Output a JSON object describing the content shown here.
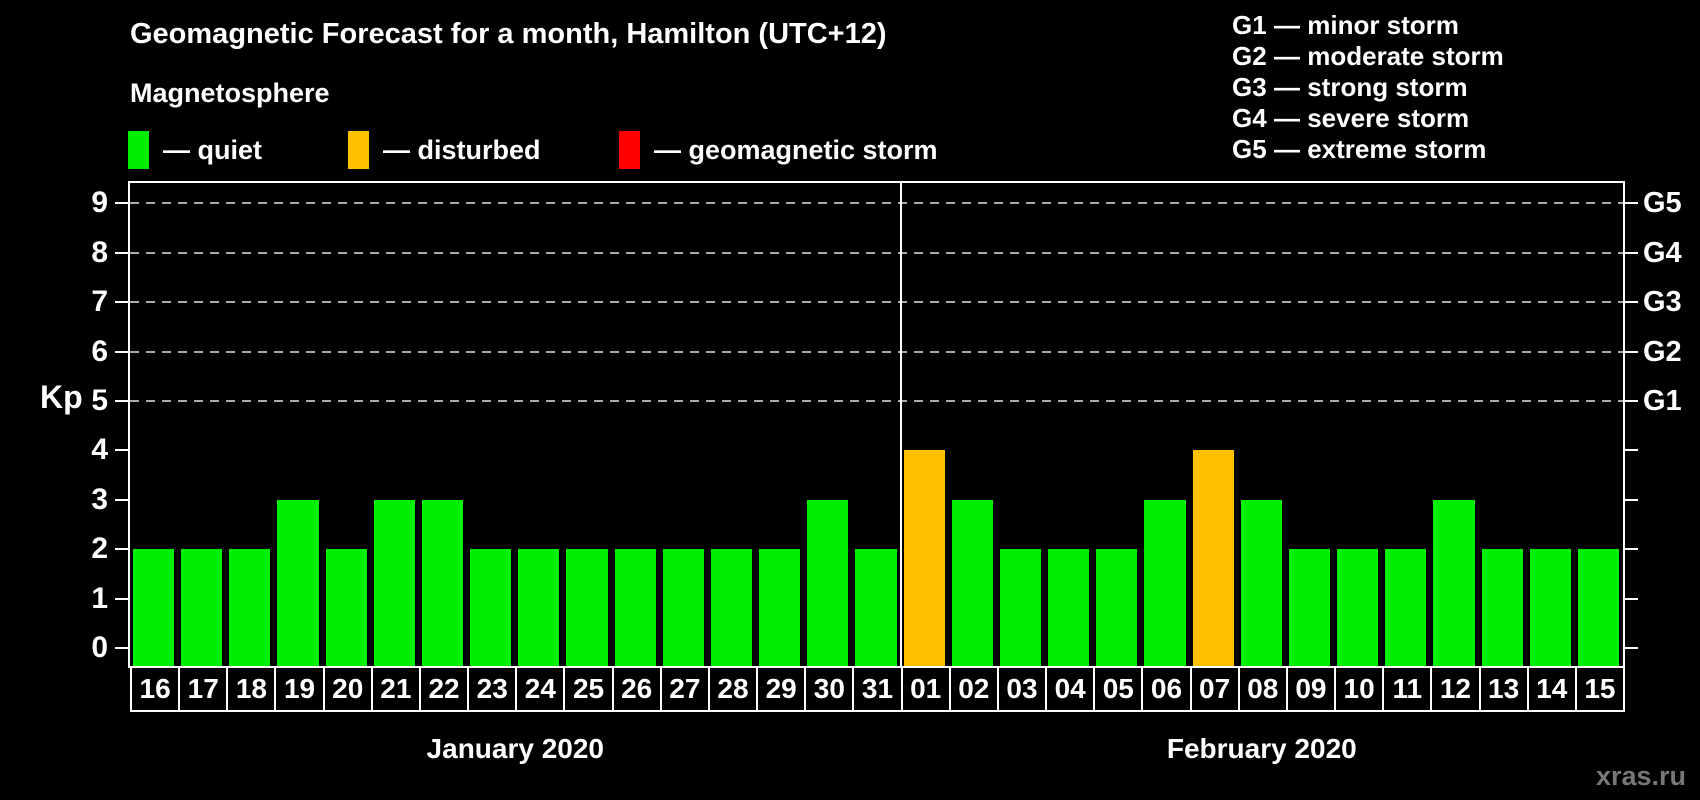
{
  "title": "Geomagnetic Forecast for a month, Hamilton (UTC+12)",
  "legend": {
    "title": "Magnetosphere",
    "items": [
      {
        "key": "quiet",
        "label": "— quiet",
        "color": "#00ee00"
      },
      {
        "key": "disturbed",
        "label": "— disturbed",
        "color": "#ffc000"
      },
      {
        "key": "storm",
        "label": "— geomagnetic storm",
        "color": "#ff0000"
      }
    ]
  },
  "g_legend": [
    {
      "code": "G1",
      "label": "— minor storm"
    },
    {
      "code": "G2",
      "label": "— moderate storm"
    },
    {
      "code": "G3",
      "label": "— strong storm"
    },
    {
      "code": "G4",
      "label": "— severe storm"
    },
    {
      "code": "G5",
      "label": "— extreme storm"
    }
  ],
  "watermark": "xras.ru",
  "chart_data": {
    "type": "bar",
    "title": "Geomagnetic Forecast for a month, Hamilton (UTC+12)",
    "ylabel": "Kp",
    "ylim": [
      0,
      9
    ],
    "yticks": [
      0,
      1,
      2,
      3,
      4,
      5,
      6,
      7,
      8,
      9
    ],
    "gridlines_at": [
      5,
      6,
      7,
      8,
      9
    ],
    "grid": "dashed horizontal at G-storm levels only",
    "right_axis_labels": [
      {
        "kp": 5,
        "label": "G1"
      },
      {
        "kp": 6,
        "label": "G2"
      },
      {
        "kp": 7,
        "label": "G3"
      },
      {
        "kp": 8,
        "label": "G4"
      },
      {
        "kp": 9,
        "label": "G5"
      }
    ],
    "colors": {
      "quiet": "#00ee00",
      "disturbed": "#ffc000",
      "storm": "#ff0000",
      "axis": "#ffffff",
      "grid": "#aaaaaa"
    },
    "months": [
      {
        "label": "January 2020",
        "days": [
          "16",
          "17",
          "18",
          "19",
          "20",
          "21",
          "22",
          "23",
          "24",
          "25",
          "26",
          "27",
          "28",
          "29",
          "30",
          "31"
        ],
        "values": [
          2,
          2,
          2,
          3,
          2,
          3,
          3,
          2,
          2,
          2,
          2,
          2,
          2,
          2,
          3,
          2
        ],
        "levels": [
          "quiet",
          "quiet",
          "quiet",
          "quiet",
          "quiet",
          "quiet",
          "quiet",
          "quiet",
          "quiet",
          "quiet",
          "quiet",
          "quiet",
          "quiet",
          "quiet",
          "quiet",
          "quiet"
        ]
      },
      {
        "label": "February 2020",
        "days": [
          "01",
          "02",
          "03",
          "04",
          "05",
          "06",
          "07",
          "08",
          "09",
          "10",
          "11",
          "12",
          "13",
          "14",
          "15"
        ],
        "values": [
          4,
          3,
          2,
          2,
          2,
          3,
          4,
          3,
          2,
          2,
          2,
          3,
          2,
          2,
          2
        ],
        "levels": [
          "disturbed",
          "quiet",
          "quiet",
          "quiet",
          "quiet",
          "quiet",
          "disturbed",
          "quiet",
          "quiet",
          "quiet",
          "quiet",
          "quiet",
          "quiet",
          "quiet",
          "quiet"
        ]
      }
    ]
  }
}
